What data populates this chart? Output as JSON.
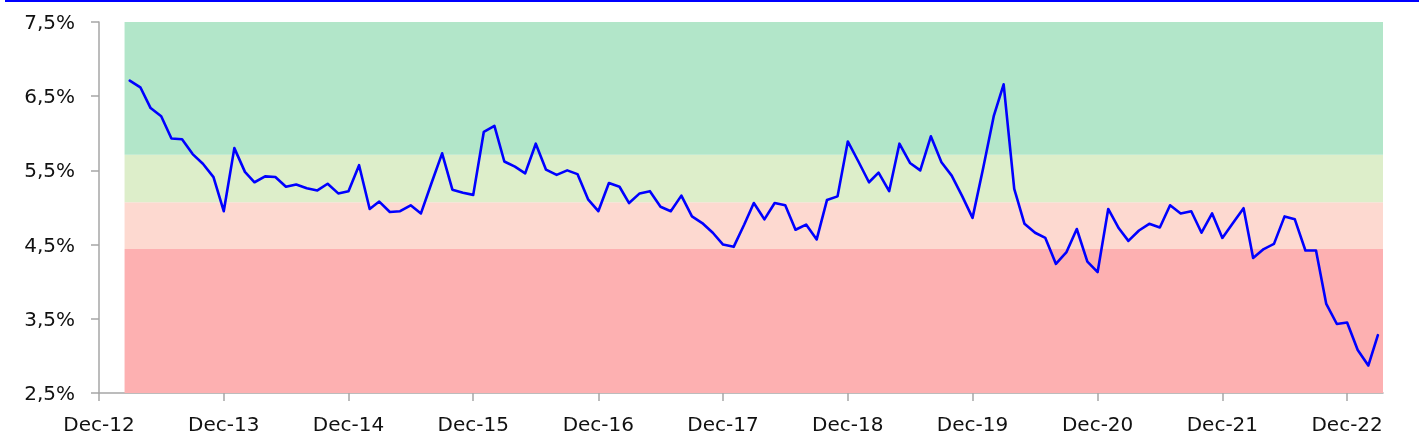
{
  "chart_data": {
    "type": "line",
    "x": [
      "2013-03",
      "2013-04",
      "2013-05",
      "2013-06",
      "2013-07",
      "2013-08",
      "2013-09",
      "2013-10",
      "2013-11",
      "2013-12",
      "2014-01",
      "2014-02",
      "2014-03",
      "2014-04",
      "2014-05",
      "2014-06",
      "2014-07",
      "2014-08",
      "2014-09",
      "2014-10",
      "2014-11",
      "2014-12",
      "2015-01",
      "2015-02",
      "2015-03",
      "2015-04",
      "2015-05",
      "2015-06",
      "2015-07",
      "2015-08",
      "2015-09",
      "2015-10",
      "2015-11",
      "2015-12",
      "2016-01",
      "2016-02",
      "2016-03",
      "2016-04",
      "2016-05",
      "2016-06",
      "2016-07",
      "2016-08",
      "2016-09",
      "2016-10",
      "2016-11",
      "2016-12",
      "2017-01",
      "2017-02",
      "2017-03",
      "2017-04",
      "2017-05",
      "2017-06",
      "2017-07",
      "2017-08",
      "2017-09",
      "2017-10",
      "2017-11",
      "2017-12",
      "2018-01",
      "2018-02",
      "2018-03",
      "2018-04",
      "2018-05",
      "2018-06",
      "2018-07",
      "2018-08",
      "2018-09",
      "2018-10",
      "2018-11",
      "2018-12",
      "2019-01",
      "2019-02",
      "2019-03",
      "2019-04",
      "2019-05",
      "2019-06",
      "2019-07",
      "2019-08",
      "2019-09",
      "2019-10",
      "2019-11",
      "2019-12",
      "2020-01",
      "2020-02",
      "2020-03",
      "2020-04",
      "2020-05",
      "2020-06",
      "2020-07",
      "2020-08",
      "2020-09",
      "2020-10",
      "2020-11",
      "2020-12",
      "2021-01",
      "2021-02",
      "2021-03",
      "2021-04",
      "2021-05",
      "2021-06",
      "2021-07",
      "2021-08",
      "2021-09",
      "2021-10",
      "2021-11",
      "2021-12",
      "2022-01",
      "2022-02",
      "2022-03",
      "2022-04",
      "2022-05",
      "2022-06",
      "2022-07",
      "2022-08",
      "2022-09",
      "2022-10",
      "2022-11",
      "2022-12",
      "2023-01",
      "2023-02",
      "2023-03"
    ],
    "series": [
      {
        "color": "#0000ff",
        "values": [
          6.71,
          6.62,
          6.34,
          6.23,
          5.93,
          5.92,
          5.72,
          5.59,
          5.41,
          4.95,
          5.8,
          5.48,
          5.34,
          5.42,
          5.41,
          5.28,
          5.31,
          5.26,
          5.23,
          5.32,
          5.19,
          5.22,
          5.57,
          4.98,
          5.08,
          4.94,
          4.95,
          5.03,
          4.92,
          5.33,
          5.73,
          5.24,
          5.2,
          5.17,
          6.02,
          6.1,
          5.62,
          5.55,
          5.46,
          5.86,
          5.51,
          5.44,
          5.5,
          5.45,
          5.11,
          4.95,
          5.33,
          5.28,
          5.06,
          5.19,
          5.22,
          5.01,
          4.95,
          5.16,
          4.88,
          4.79,
          4.66,
          4.5,
          4.47,
          4.77,
          5.06,
          4.84,
          5.06,
          5.03,
          4.7,
          4.77,
          4.57,
          5.1,
          5.15,
          5.89,
          5.62,
          5.34,
          5.47,
          5.22,
          5.86,
          5.6,
          5.5,
          5.96,
          5.61,
          5.43,
          5.15,
          4.86,
          5.53,
          6.23,
          6.66,
          5.25,
          4.78,
          4.66,
          4.59,
          4.24,
          4.4,
          4.71,
          4.27,
          4.13,
          4.98,
          4.72,
          4.55,
          4.69,
          4.78,
          4.73,
          5.03,
          4.92,
          4.95,
          4.66,
          4.92,
          4.59,
          4.79,
          4.99,
          4.32,
          4.44,
          4.51,
          4.88,
          4.84,
          4.42,
          4.42,
          3.7,
          3.43,
          3.45,
          3.08,
          2.87,
          3.28
        ]
      }
    ],
    "xlim": [
      "2012-12",
      "2023-03-16"
    ],
    "xticks": [
      {
        "value": "2012-12",
        "label": "Dec-12"
      },
      {
        "value": "2013-12",
        "label": "Dec-13"
      },
      {
        "value": "2014-12",
        "label": "Dec-14"
      },
      {
        "value": "2015-12",
        "label": "Dec-15"
      },
      {
        "value": "2016-12",
        "label": "Dec-16"
      },
      {
        "value": "2017-12",
        "label": "Dec-17"
      },
      {
        "value": "2018-12",
        "label": "Dec-18"
      },
      {
        "value": "2019-12",
        "label": "Dec-19"
      },
      {
        "value": "2020-12",
        "label": "Dec-20"
      },
      {
        "value": "2021-12",
        "label": "Dec-21"
      },
      {
        "value": "2022-12",
        "label": "Dec-22"
      }
    ],
    "ylim": [
      2.5,
      7.5
    ],
    "yticks": [
      {
        "value": 2.5,
        "label": "2,5%"
      },
      {
        "value": 3.5,
        "label": "3,5%"
      },
      {
        "value": 4.5,
        "label": "4,5%"
      },
      {
        "value": 5.5,
        "label": "5,5%"
      },
      {
        "value": 6.5,
        "label": "6,5%"
      },
      {
        "value": 7.5,
        "label": "7,5%"
      }
    ],
    "bands": [
      {
        "axis": "y",
        "from": 2.5,
        "to": 4.44,
        "color": "#fdb0b1"
      },
      {
        "axis": "y",
        "from": 4.44,
        "to": 5.07,
        "color": "#fdd9d0"
      },
      {
        "axis": "y",
        "from": 5.07,
        "to": 5.71,
        "color": "#ddeeca"
      },
      {
        "axis": "y",
        "from": 5.71,
        "to": 7.5,
        "color": "#b2e6c9"
      }
    ],
    "grid": false,
    "marker": "none"
  }
}
